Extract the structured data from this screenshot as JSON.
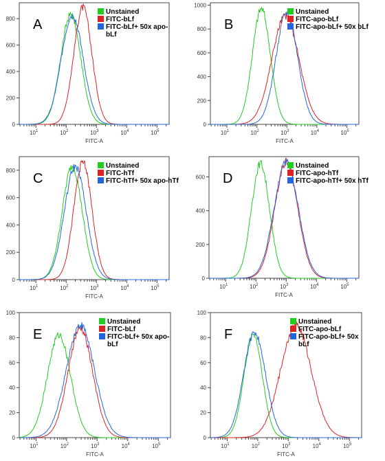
{
  "chart_data": [
    {
      "type": "line",
      "panel": "A",
      "xlabel": "FITC-A",
      "xscale": "log",
      "x_ticks": [
        "10^1",
        "10^2",
        "10^3",
        "10^4",
        "10^5"
      ],
      "y_ticks": [
        "0",
        "200",
        "400",
        "600",
        "800"
      ],
      "ylim": [
        0,
        920
      ],
      "legend": [
        "Unstained",
        "FITC-bLf",
        "FITC-bLf+ 50x apo-",
        "bLf"
      ],
      "colors": [
        "#22cc22",
        "#dd2222",
        "#2266dd"
      ],
      "series": [
        {
          "name": "Unstained",
          "mu": 2.15,
          "sigma": 0.33,
          "peak": 830
        },
        {
          "name": "FITC-bLf",
          "mu": 2.55,
          "sigma": 0.3,
          "peak": 885
        },
        {
          "name": "FITC-bLf+ 50x apo-bLf",
          "mu": 2.2,
          "sigma": 0.36,
          "peak": 830
        }
      ]
    },
    {
      "type": "line",
      "panel": "B",
      "xlabel": "FITC-A",
      "xscale": "log",
      "x_ticks": [
        "10^1",
        "10^2",
        "10^3",
        "10^4",
        "10^5"
      ],
      "y_ticks": [
        "0",
        "200",
        "400",
        "600",
        "800",
        "1000"
      ],
      "ylim": [
        0,
        1020
      ],
      "legend": [
        "Unstained",
        "FITC-apo-bLf",
        "FITC-apo-bLf+ 50x bLf"
      ],
      "colors": [
        "#22cc22",
        "#dd2222",
        "#2266dd"
      ],
      "series": [
        {
          "name": "Unstained",
          "mu": 2.15,
          "sigma": 0.3,
          "peak": 970
        },
        {
          "name": "FITC-apo-bLf",
          "mu": 2.95,
          "sigma": 0.45,
          "peak": 910
        },
        {
          "name": "FITC-apo-bLf+ 50x bLf",
          "mu": 3.0,
          "sigma": 0.36,
          "peak": 940
        }
      ]
    },
    {
      "type": "line",
      "panel": "C",
      "xlabel": "FITC-A",
      "xscale": "log",
      "x_ticks": [
        "10^1",
        "10^2",
        "10^3",
        "10^4",
        "10^5"
      ],
      "y_ticks": [
        "0",
        "200",
        "400",
        "600",
        "800"
      ],
      "ylim": [
        0,
        900
      ],
      "legend": [
        "Unstained",
        "FITC-hTf",
        "FITC-hTf+ 50x apo-hTf"
      ],
      "colors": [
        "#22cc22",
        "#dd2222",
        "#2266dd"
      ],
      "series": [
        {
          "name": "Unstained",
          "mu": 2.2,
          "sigma": 0.33,
          "peak": 830
        },
        {
          "name": "FITC-hTf",
          "mu": 2.55,
          "sigma": 0.3,
          "peak": 860
        },
        {
          "name": "FITC-hTf+ 50x apo-hTf",
          "mu": 2.3,
          "sigma": 0.36,
          "peak": 830
        }
      ]
    },
    {
      "type": "line",
      "panel": "D",
      "xlabel": "FITC-A",
      "xscale": "log",
      "x_ticks": [
        "10^1",
        "10^2",
        "10^3",
        "10^4",
        "10^5"
      ],
      "y_ticks": [
        "0",
        "200",
        "400",
        "600"
      ],
      "ylim": [
        0,
        720
      ],
      "legend": [
        "Unstained",
        "FITC-apo-hTf",
        "FITC-apo-hTf+ 50x hTf"
      ],
      "colors": [
        "#22cc22",
        "#dd2222",
        "#2266dd"
      ],
      "series": [
        {
          "name": "Unstained",
          "mu": 2.15,
          "sigma": 0.3,
          "peak": 680
        },
        {
          "name": "FITC-apo-hTf",
          "mu": 3.0,
          "sigma": 0.38,
          "peak": 690
        },
        {
          "name": "FITC-apo-hTf+ 50x hTf",
          "mu": 3.0,
          "sigma": 0.4,
          "peak": 690
        }
      ]
    },
    {
      "type": "line",
      "panel": "E",
      "xlabel": "FITC-A",
      "xscale": "log",
      "x_ticks": [
        "10^1",
        "10^2",
        "10^3",
        "10^4",
        "10^5"
      ],
      "y_ticks": [
        "0",
        "20",
        "40",
        "60",
        "80",
        "100"
      ],
      "ylim": [
        0,
        100
      ],
      "legend": [
        "Unstained",
        "FITC-bLf",
        "FITC-bLf+ 50x apo-",
        "bLf"
      ],
      "colors": [
        "#22cc22",
        "#dd2222",
        "#2266dd"
      ],
      "series": [
        {
          "name": "Unstained",
          "mu": 1.75,
          "sigma": 0.38,
          "peak": 82
        },
        {
          "name": "FITC-bLf",
          "mu": 2.45,
          "sigma": 0.4,
          "peak": 87
        },
        {
          "name": "FITC-bLf+ 50x apo-bLf",
          "mu": 2.45,
          "sigma": 0.46,
          "peak": 90
        }
      ]
    },
    {
      "type": "line",
      "panel": "F",
      "xlabel": "FITC-A",
      "xscale": "log",
      "x_ticks": [
        "10^1",
        "10^2",
        "10^3",
        "10^4",
        "10^5"
      ],
      "y_ticks": [
        "0",
        "20",
        "40",
        "60",
        "80",
        "100"
      ],
      "ylim": [
        0,
        100
      ],
      "legend": [
        "Unstained",
        "FITC-apo-bLf",
        "FITC-apo-bLf+ 50x",
        "bLf"
      ],
      "colors": [
        "#22cc22",
        "#dd2222",
        "#2266dd"
      ],
      "series": [
        {
          "name": "Unstained",
          "mu": 1.85,
          "sigma": 0.3,
          "peak": 83
        },
        {
          "name": "FITC-apo-bLf",
          "mu": 3.25,
          "sigma": 0.5,
          "peak": 90
        },
        {
          "name": "FITC-apo-bLf+ 50x bLf",
          "mu": 1.9,
          "sigma": 0.36,
          "peak": 84
        }
      ]
    }
  ]
}
